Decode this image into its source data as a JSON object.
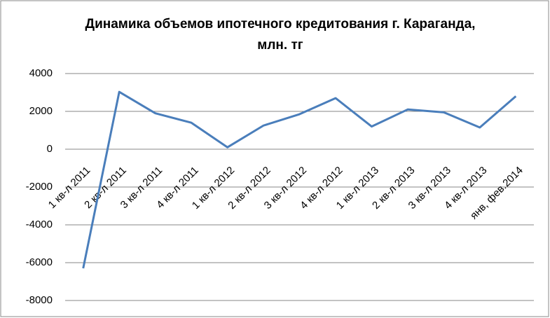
{
  "chart_data": {
    "type": "line",
    "title": "Динамика объемов ипотечного кредитования г. Караганда, млн. тг",
    "categories": [
      "1 кв-л 2011",
      "2 кв-л 2011",
      "3 кв-л 2011",
      "4 кв-л 2011",
      "1 кв-л 2012",
      "2 кв-л 2012",
      "3 кв-л 2012",
      "4 кв-л 2012",
      "1 кв-л 2013",
      "2 кв-л 2013",
      "3 кв-л 2013",
      "4 кв-л 2013",
      "янв, фев.2014"
    ],
    "values": [
      -6300,
      3030,
      1900,
      1400,
      100,
      1250,
      1850,
      2700,
      1200,
      2100,
      1950,
      1150,
      2800
    ],
    "color": "#4a7ebb",
    "ylim": [
      -8000,
      4000
    ],
    "yticks": [
      -8000,
      -6000,
      -4000,
      -2000,
      0,
      2000,
      4000
    ],
    "grid": true
  }
}
